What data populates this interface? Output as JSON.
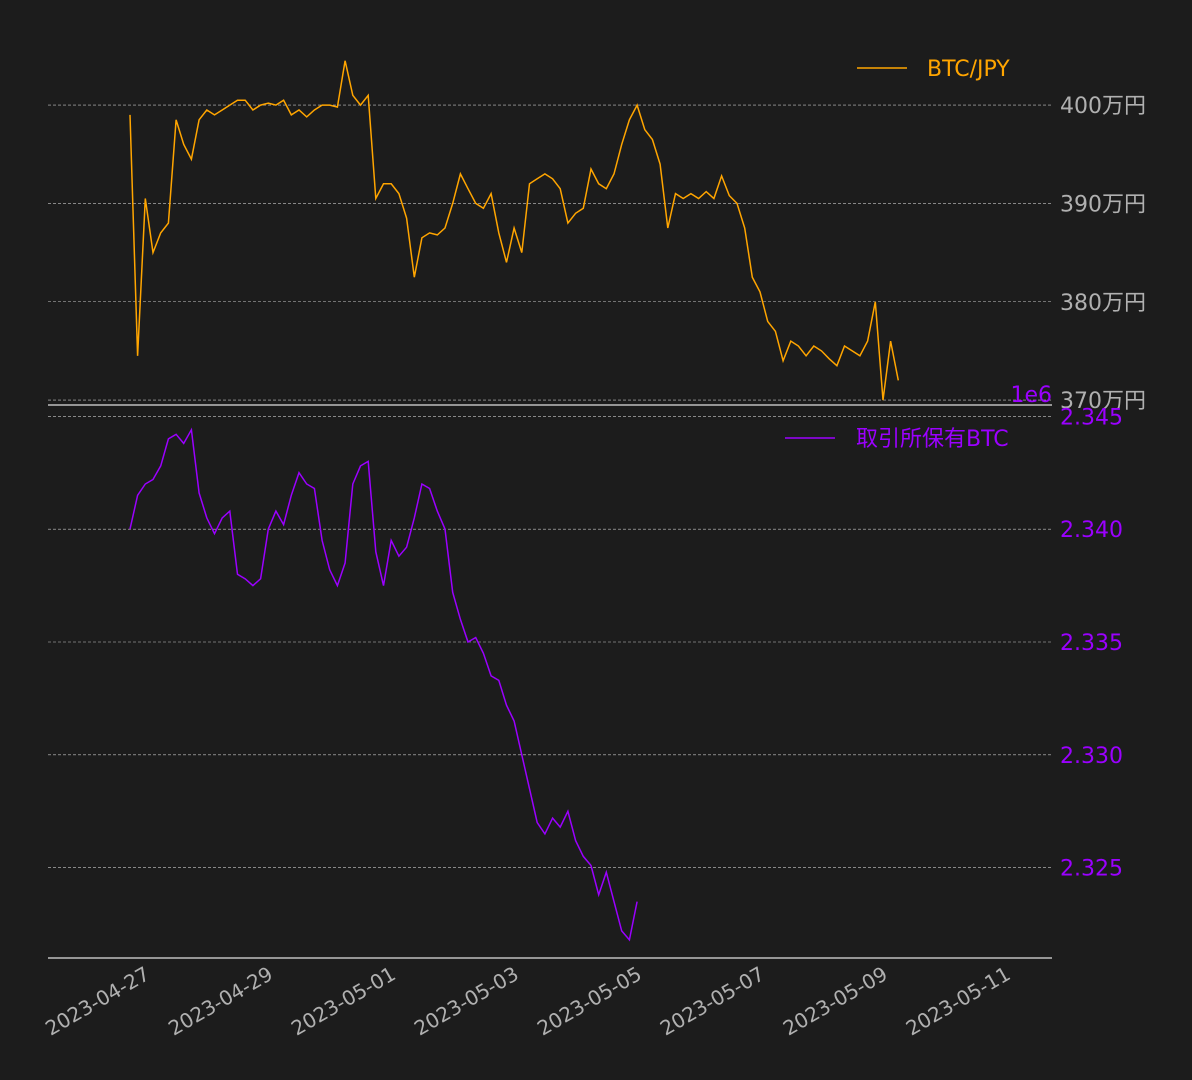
{
  "colors": {
    "background": "#1c1c1c",
    "btc_jpy": "#ffa500",
    "exchange_btc": "#9b00ff",
    "grid": "#c8c8c8",
    "axis_tick_text": "#b0b0b0",
    "axis_line": "#e0e0e0"
  },
  "chart_data": [
    {
      "type": "line",
      "legend": "top-right",
      "grid": true,
      "ylim": [
        3695000,
        4055000
      ],
      "yticks": [
        3700000,
        3800000,
        3900000,
        4000000
      ],
      "ytick_labels": [
        "370万円",
        "380万円",
        "390万円",
        "400万円"
      ],
      "series": [
        {
          "name": "BTC/JPY",
          "points": [
            [
              "2023-04-26 18:00",
              3990000
            ],
            [
              "2023-04-26 21:00",
              3745000
            ],
            [
              "2023-04-27 00:00",
              3905000
            ],
            [
              "2023-04-27 03:00",
              3850000
            ],
            [
              "2023-04-27 06:00",
              3870000
            ],
            [
              "2023-04-27 09:00",
              3880000
            ],
            [
              "2023-04-27 12:00",
              3985000
            ],
            [
              "2023-04-27 15:00",
              3960000
            ],
            [
              "2023-04-27 18:00",
              3945000
            ],
            [
              "2023-04-27 21:00",
              3985000
            ],
            [
              "2023-04-28 00:00",
              3995000
            ],
            [
              "2023-04-28 03:00",
              3990000
            ],
            [
              "2023-04-28 06:00",
              3995000
            ],
            [
              "2023-04-28 09:00",
              4000000
            ],
            [
              "2023-04-28 12:00",
              4005000
            ],
            [
              "2023-04-28 15:00",
              4005000
            ],
            [
              "2023-04-28 18:00",
              3995000
            ],
            [
              "2023-04-28 21:00",
              4000000
            ],
            [
              "2023-04-29 00:00",
              4002000
            ],
            [
              "2023-04-29 03:00",
              4000000
            ],
            [
              "2023-04-29 06:00",
              4005000
            ],
            [
              "2023-04-29 09:00",
              3990000
            ],
            [
              "2023-04-29 12:00",
              3995000
            ],
            [
              "2023-04-29 15:00",
              3988000
            ],
            [
              "2023-04-29 18:00",
              3995000
            ],
            [
              "2023-04-29 21:00",
              4000000
            ],
            [
              "2023-04-30 00:00",
              4000000
            ],
            [
              "2023-04-30 03:00",
              3998000
            ],
            [
              "2023-04-30 06:00",
              4045000
            ],
            [
              "2023-04-30 09:00",
              4010000
            ],
            [
              "2023-04-30 12:00",
              4000000
            ],
            [
              "2023-04-30 15:00",
              4010000
            ],
            [
              "2023-04-30 18:00",
              3905000
            ],
            [
              "2023-04-30 21:00",
              3920000
            ],
            [
              "2023-05-01 00:00",
              3920000
            ],
            [
              "2023-05-01 03:00",
              3910000
            ],
            [
              "2023-05-01 06:00",
              3885000
            ],
            [
              "2023-05-01 09:00",
              3825000
            ],
            [
              "2023-05-01 12:00",
              3865000
            ],
            [
              "2023-05-01 15:00",
              3870000
            ],
            [
              "2023-05-01 18:00",
              3868000
            ],
            [
              "2023-05-01 21:00",
              3875000
            ],
            [
              "2023-05-02 00:00",
              3900000
            ],
            [
              "2023-05-02 03:00",
              3930000
            ],
            [
              "2023-05-02 06:00",
              3915000
            ],
            [
              "2023-05-02 09:00",
              3900000
            ],
            [
              "2023-05-02 12:00",
              3895000
            ],
            [
              "2023-05-02 15:00",
              3910000
            ],
            [
              "2023-05-02 18:00",
              3870000
            ],
            [
              "2023-05-02 21:00",
              3840000
            ],
            [
              "2023-05-03 00:00",
              3875000
            ],
            [
              "2023-05-03 03:00",
              3850000
            ],
            [
              "2023-05-03 06:00",
              3920000
            ],
            [
              "2023-05-03 09:00",
              3925000
            ],
            [
              "2023-05-03 12:00",
              3930000
            ],
            [
              "2023-05-03 15:00",
              3925000
            ],
            [
              "2023-05-03 18:00",
              3915000
            ],
            [
              "2023-05-03 21:00",
              3880000
            ],
            [
              "2023-05-04 00:00",
              3890000
            ],
            [
              "2023-05-04 03:00",
              3895000
            ],
            [
              "2023-05-04 06:00",
              3935000
            ],
            [
              "2023-05-04 09:00",
              3920000
            ],
            [
              "2023-05-04 12:00",
              3915000
            ],
            [
              "2023-05-04 15:00",
              3930000
            ],
            [
              "2023-05-04 18:00",
              3960000
            ],
            [
              "2023-05-04 21:00",
              3985000
            ],
            [
              "2023-05-05 00:00",
              4000000
            ],
            [
              "2023-05-05 03:00",
              3975000
            ],
            [
              "2023-05-05 06:00",
              3965000
            ],
            [
              "2023-05-05 09:00",
              3940000
            ],
            [
              "2023-05-05 12:00",
              3875000
            ],
            [
              "2023-05-05 15:00",
              3910000
            ],
            [
              "2023-05-05 18:00",
              3905000
            ],
            [
              "2023-05-05 21:00",
              3910000
            ],
            [
              "2023-05-06 00:00",
              3905000
            ],
            [
              "2023-05-06 03:00",
              3912000
            ],
            [
              "2023-05-06 06:00",
              3905000
            ],
            [
              "2023-05-06 09:00",
              3928000
            ],
            [
              "2023-05-06 12:00",
              3908000
            ],
            [
              "2023-05-06 15:00",
              3900000
            ],
            [
              "2023-05-06 18:00",
              3875000
            ],
            [
              "2023-05-06 21:00",
              3825000
            ],
            [
              "2023-05-07 00:00",
              3810000
            ],
            [
              "2023-05-07 03:00",
              3780000
            ],
            [
              "2023-05-07 06:00",
              3770000
            ],
            [
              "2023-05-07 09:00",
              3740000
            ],
            [
              "2023-05-07 12:00",
              3760000
            ],
            [
              "2023-05-07 15:00",
              3755000
            ],
            [
              "2023-05-07 18:00",
              3745000
            ],
            [
              "2023-05-07 21:00",
              3755000
            ],
            [
              "2023-05-08 00:00",
              3750000
            ],
            [
              "2023-05-08 03:00",
              3742000
            ],
            [
              "2023-05-08 06:00",
              3735000
            ],
            [
              "2023-05-08 09:00",
              3755000
            ],
            [
              "2023-05-08 12:00",
              3750000
            ],
            [
              "2023-05-08 15:00",
              3745000
            ],
            [
              "2023-05-08 18:00",
              3760000
            ],
            [
              "2023-05-08 21:00",
              3800000
            ],
            [
              "2023-05-09 00:00",
              3700000
            ],
            [
              "2023-05-09 03:00",
              3760000
            ],
            [
              "2023-05-09 06:00",
              3720000
            ]
          ]
        }
      ]
    },
    {
      "type": "line",
      "legend": "top-right",
      "grid": true,
      "offset_text": "1e6",
      "ylim": [
        2.321,
        2.3455
      ],
      "yticks": [
        2.325,
        2.33,
        2.335,
        2.34,
        2.345
      ],
      "ytick_labels": [
        "2.325",
        "2.330",
        "2.335",
        "2.340",
        "2.345"
      ],
      "series": [
        {
          "name": "取引所保有BTC",
          "points": [
            [
              "2023-04-26 18:00",
              2.34
            ],
            [
              "2023-04-26 21:00",
              2.3415
            ],
            [
              "2023-04-27 00:00",
              2.342
            ],
            [
              "2023-04-27 03:00",
              2.3422
            ],
            [
              "2023-04-27 06:00",
              2.3428
            ],
            [
              "2023-04-27 09:00",
              2.344
            ],
            [
              "2023-04-27 12:00",
              2.3442
            ],
            [
              "2023-04-27 15:00",
              2.3438
            ],
            [
              "2023-04-27 18:00",
              2.3444
            ],
            [
              "2023-04-27 21:00",
              2.3416
            ],
            [
              "2023-04-28 00:00",
              2.3405
            ],
            [
              "2023-04-28 03:00",
              2.3398
            ],
            [
              "2023-04-28 06:00",
              2.3405
            ],
            [
              "2023-04-28 09:00",
              2.3408
            ],
            [
              "2023-04-28 12:00",
              2.338
            ],
            [
              "2023-04-28 15:00",
              2.3378
            ],
            [
              "2023-04-28 18:00",
              2.3375
            ],
            [
              "2023-04-28 21:00",
              2.3378
            ],
            [
              "2023-04-29 00:00",
              2.34
            ],
            [
              "2023-04-29 03:00",
              2.3408
            ],
            [
              "2023-04-29 06:00",
              2.3402
            ],
            [
              "2023-04-29 09:00",
              2.3415
            ],
            [
              "2023-04-29 12:00",
              2.3425
            ],
            [
              "2023-04-29 15:00",
              2.342
            ],
            [
              "2023-04-29 18:00",
              2.3418
            ],
            [
              "2023-04-29 21:00",
              2.3395
            ],
            [
              "2023-04-30 00:00",
              2.3382
            ],
            [
              "2023-04-30 03:00",
              2.3375
            ],
            [
              "2023-04-30 06:00",
              2.3385
            ],
            [
              "2023-04-30 09:00",
              2.342
            ],
            [
              "2023-04-30 12:00",
              2.3428
            ],
            [
              "2023-04-30 15:00",
              2.343
            ],
            [
              "2023-04-30 18:00",
              2.339
            ],
            [
              "2023-04-30 21:00",
              2.3375
            ],
            [
              "2023-05-01 00:00",
              2.3395
            ],
            [
              "2023-05-01 03:00",
              2.3388
            ],
            [
              "2023-05-01 06:00",
              2.3392
            ],
            [
              "2023-05-01 09:00",
              2.3405
            ],
            [
              "2023-05-01 12:00",
              2.342
            ],
            [
              "2023-05-01 15:00",
              2.3418
            ],
            [
              "2023-05-01 18:00",
              2.3408
            ],
            [
              "2023-05-01 21:00",
              2.34
            ],
            [
              "2023-05-02 00:00",
              2.3372
            ],
            [
              "2023-05-02 03:00",
              2.336
            ],
            [
              "2023-05-02 06:00",
              2.335
            ],
            [
              "2023-05-02 09:00",
              2.3352
            ],
            [
              "2023-05-02 12:00",
              2.3345
            ],
            [
              "2023-05-02 15:00",
              2.3335
            ],
            [
              "2023-05-02 18:00",
              2.3333
            ],
            [
              "2023-05-02 21:00",
              2.3322
            ],
            [
              "2023-05-03 00:00",
              2.3315
            ],
            [
              "2023-05-03 03:00",
              2.33
            ],
            [
              "2023-05-03 06:00",
              2.3285
            ],
            [
              "2023-05-03 09:00",
              2.327
            ],
            [
              "2023-05-03 12:00",
              2.3265
            ],
            [
              "2023-05-03 15:00",
              2.3272
            ],
            [
              "2023-05-03 18:00",
              2.3268
            ],
            [
              "2023-05-03 21:00",
              2.3275
            ],
            [
              "2023-05-04 00:00",
              2.3262
            ],
            [
              "2023-05-04 03:00",
              2.3255
            ],
            [
              "2023-05-04 06:00",
              2.3251
            ],
            [
              "2023-05-04 09:00",
              2.3238
            ],
            [
              "2023-05-04 12:00",
              2.3248
            ],
            [
              "2023-05-04 15:00",
              2.3235
            ],
            [
              "2023-05-04 18:00",
              2.3222
            ],
            [
              "2023-05-04 21:00",
              2.3218
            ],
            [
              "2023-05-05 00:00",
              2.3235
            ]
          ]
        }
      ]
    }
  ],
  "x_axis": {
    "ticks": [
      "2023-04-27",
      "2023-04-29",
      "2023-05-01",
      "2023-05-03",
      "2023-05-05",
      "2023-05-07",
      "2023-05-09",
      "2023-05-11"
    ]
  }
}
